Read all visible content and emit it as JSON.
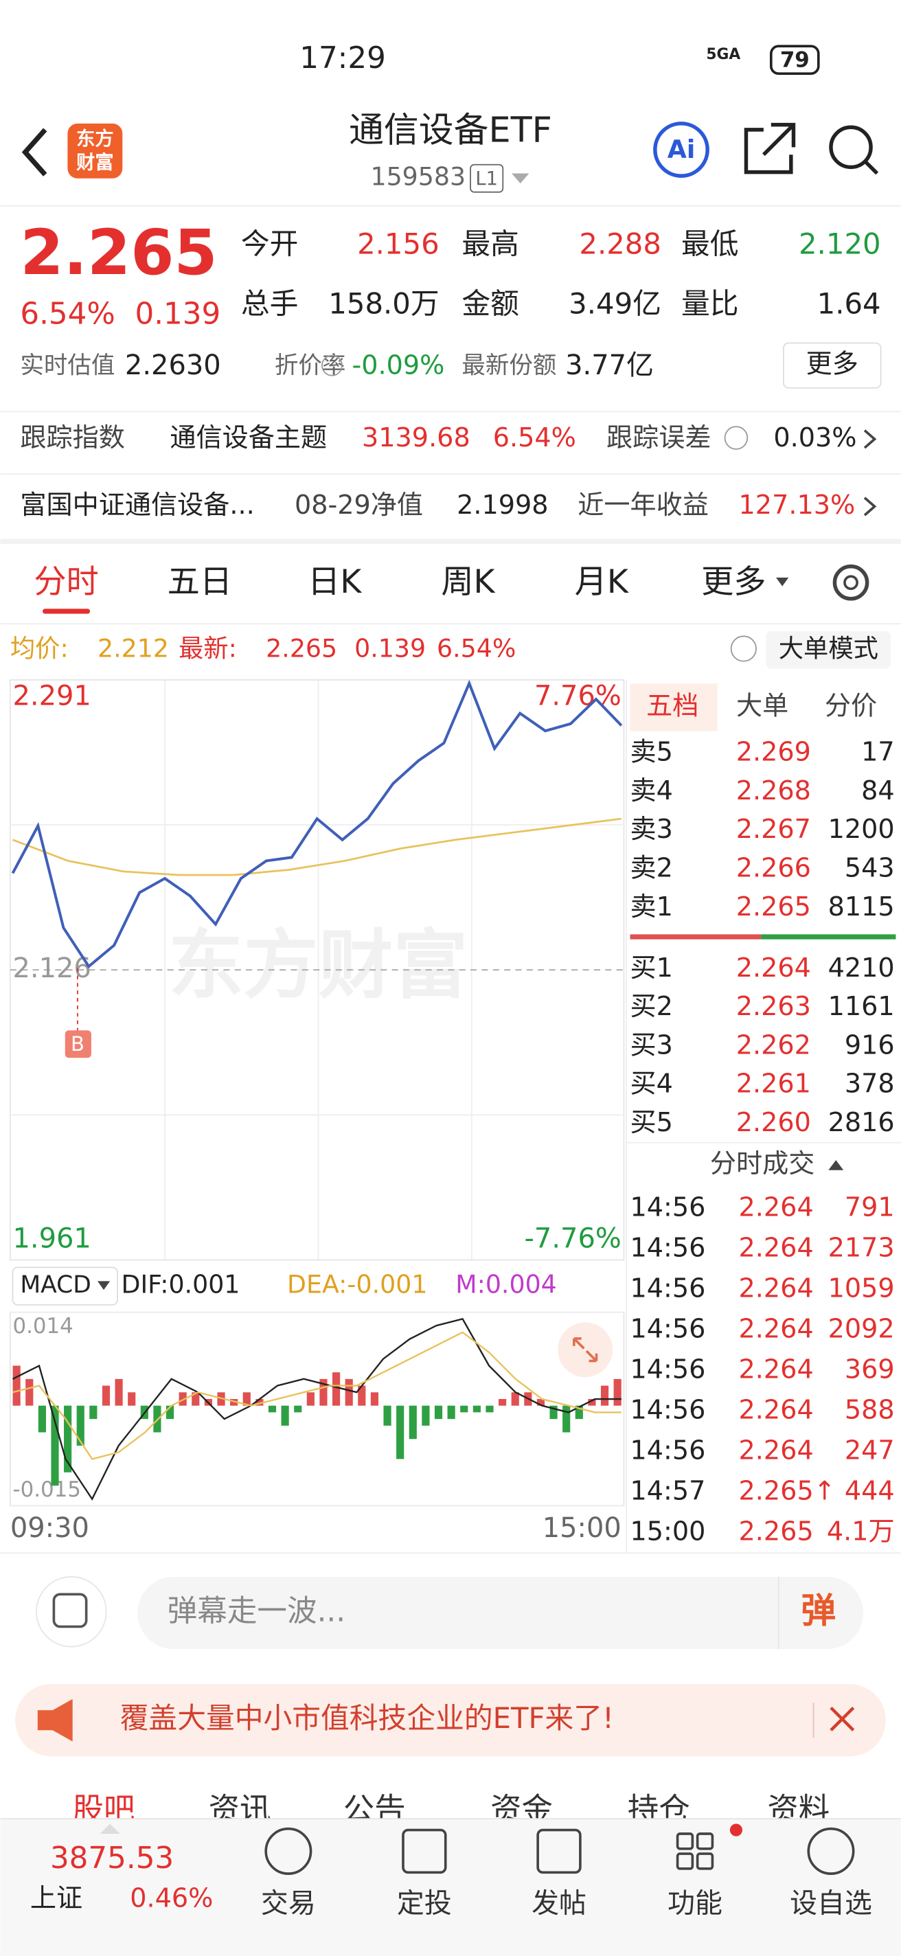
{
  "status": {
    "time": "17:29",
    "network": "5GA",
    "battery": "79"
  },
  "header": {
    "logo_top": "东方",
    "logo_bottom": "财富",
    "title": "通信设备ETF",
    "code": "159583",
    "level": "L1",
    "ai": "Ai"
  },
  "quote": {
    "price": "2.265",
    "pct": "6.54%",
    "change": "0.139",
    "fields": [
      {
        "label": "今开",
        "value": "2.156"
      },
      {
        "label": "最高",
        "value": "2.288"
      },
      {
        "label": "最低",
        "value": "2.120"
      },
      {
        "label": "总手",
        "value": "158.0万"
      },
      {
        "label": "金额",
        "value": "3.49亿"
      },
      {
        "label": "量比",
        "value": "1.64"
      }
    ],
    "estimate_label": "实时估值",
    "estimate": "2.2630",
    "discount_label": "折价率",
    "discount": "-0.09%",
    "shares_label": "最新份额",
    "shares": "3.77亿",
    "more": "更多"
  },
  "tracking": {
    "label": "跟踪指数",
    "index": "通信设备主题",
    "value": "3139.68",
    "pct": "6.54%",
    "error_label": "跟踪误差",
    "error": "0.03%"
  },
  "fund": {
    "name": "富国中证通信设备...",
    "nav_label": "08-29净值",
    "nav": "2.1998",
    "return_label": "近一年收益",
    "return": "127.13%"
  },
  "tabs": [
    "分时",
    "五日",
    "日K",
    "周K",
    "月K",
    "更多"
  ],
  "infobar": {
    "avg_label": "均价:",
    "avg": "2.212",
    "latest_label": "最新:",
    "latest": "2.265",
    "change": "0.139",
    "pct": "6.54%",
    "mode": "大单模式"
  },
  "intraday": {
    "type": "line",
    "ylim": [
      1.961,
      2.291
    ],
    "yticks": [
      1.961,
      2.126,
      2.291
    ],
    "top_pct": "7.76%",
    "bottom_pct": "-7.76%",
    "marker": "B",
    "watermark": "东方财富",
    "series": [
      {
        "name": "最新",
        "color": "#3f5fb8",
        "values": [
          2.181,
          2.208,
          2.15,
          2.128,
          2.14,
          2.17,
          2.178,
          2.168,
          2.152,
          2.178,
          2.188,
          2.19,
          2.212,
          2.2,
          2.212,
          2.232,
          2.245,
          2.255,
          2.289,
          2.252,
          2.272,
          2.262,
          2.266,
          2.28,
          2.265
        ]
      },
      {
        "name": "均价",
        "color": "#e8c25a",
        "values": [
          2.2,
          2.188,
          2.182,
          2.18,
          2.18,
          2.183,
          2.188,
          2.195,
          2.2,
          2.204,
          2.208,
          2.212
        ]
      }
    ]
  },
  "macd": {
    "type": "bar",
    "label": "MACD",
    "dif": "DIF:0.001",
    "dea": "DEA:-0.001",
    "m": "M:0.004",
    "ylim": [
      -0.015,
      0.014
    ],
    "yticks": [
      -0.015,
      0.014
    ],
    "xlabels": [
      "09:30",
      "15:00"
    ],
    "hist": [
      0.006,
      0.004,
      -0.004,
      -0.012,
      -0.01,
      -0.006,
      -0.002,
      0.003,
      0.004,
      0.002,
      -0.002,
      -0.004,
      -0.002,
      0.002,
      0.002,
      0.001,
      0.002,
      0.001,
      0.002,
      0.001,
      -0.001,
      -0.003,
      -0.001,
      0.002,
      0.004,
      0.005,
      0.004,
      0.003,
      0.002,
      -0.003,
      -0.008,
      -0.005,
      -0.003,
      -0.002,
      -0.002,
      -0.001,
      -0.001,
      -0.001,
      0.001,
      0.002,
      0.002,
      0.001,
      -0.002,
      -0.004,
      -0.002,
      0.001,
      0.003,
      0.004
    ],
    "lines": [
      {
        "name": "DIF",
        "color": "#222222",
        "values": [
          0.004,
          0.006,
          -0.008,
          -0.014,
          -0.006,
          -0.001,
          0.004,
          0.002,
          -0.002,
          0.0,
          0.003,
          0.004,
          0.003,
          0.002,
          0.007,
          0.01,
          0.012,
          0.013,
          0.006,
          0.002,
          0.0,
          -0.001,
          0.001,
          0.001
        ]
      },
      {
        "name": "DEA",
        "color": "#e8c25a",
        "values": [
          0.002,
          0.003,
          -0.002,
          -0.008,
          -0.007,
          -0.004,
          0.0,
          0.002,
          0.001,
          0.0,
          0.001,
          0.002,
          0.003,
          0.003,
          0.005,
          0.007,
          0.009,
          0.011,
          0.008,
          0.004,
          0.001,
          0.0,
          -0.001,
          -0.001
        ]
      }
    ]
  },
  "orderbook": {
    "tabs": [
      "五档",
      "大单",
      "分价"
    ],
    "asks": [
      [
        "卖5",
        "2.269",
        "17"
      ],
      [
        "卖4",
        "2.268",
        "84"
      ],
      [
        "卖3",
        "2.267",
        "1200"
      ],
      [
        "卖2",
        "2.266",
        "543"
      ],
      [
        "卖1",
        "2.265",
        "8115"
      ]
    ],
    "bids": [
      [
        "买1",
        "2.264",
        "4210"
      ],
      [
        "买2",
        "2.263",
        "1161"
      ],
      [
        "买3",
        "2.262",
        "916"
      ],
      [
        "买4",
        "2.261",
        "378"
      ],
      [
        "买5",
        "2.260",
        "2816"
      ]
    ],
    "trades_title": "分时成交",
    "trades": [
      [
        "14:56",
        "2.264",
        "791"
      ],
      [
        "14:56",
        "2.264",
        "2173"
      ],
      [
        "14:56",
        "2.264",
        "1059"
      ],
      [
        "14:56",
        "2.264",
        "2092"
      ],
      [
        "14:56",
        "2.264",
        "369"
      ],
      [
        "14:56",
        "2.264",
        "588"
      ],
      [
        "14:56",
        "2.264",
        "247"
      ],
      [
        "14:57",
        "2.265↑",
        "444"
      ],
      [
        "15:00",
        "2.265",
        "4.1万"
      ]
    ]
  },
  "comment": {
    "placeholder": "弹幕走一波...",
    "button": "弹"
  },
  "banner": {
    "text": "覆盖大量中小市值科技企业的ETF来了!"
  },
  "subtabs": [
    "股吧",
    "资讯",
    "公告",
    "资金",
    "持仓",
    "资料"
  ],
  "bottom": {
    "index_value": "3875.53",
    "index_name": "上证",
    "index_pct": "0.46%",
    "nav": [
      "交易",
      "定投",
      "发帖",
      "功能",
      "设自选"
    ]
  }
}
